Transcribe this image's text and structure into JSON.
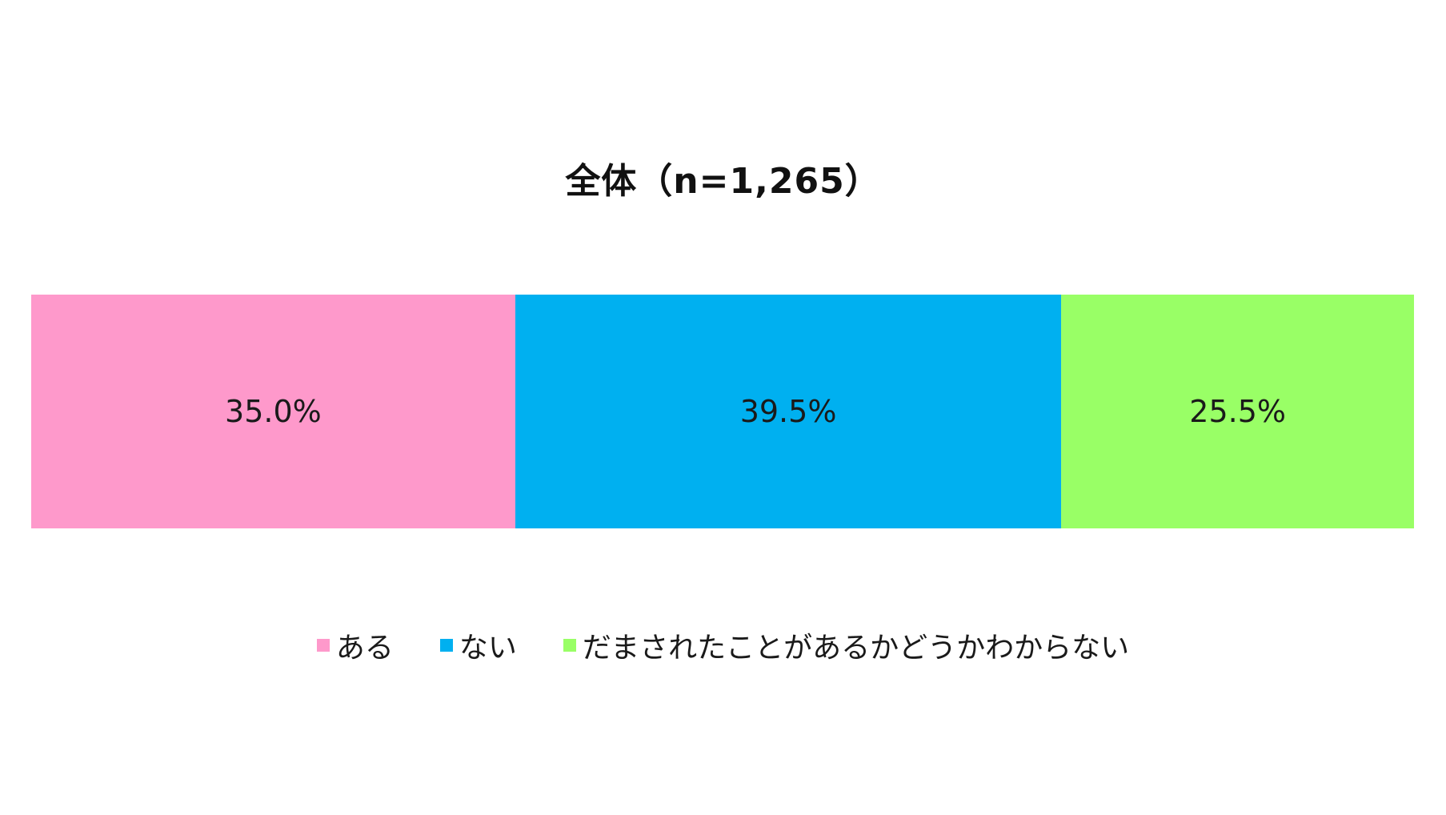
{
  "chart_data": {
    "type": "bar",
    "orientation": "horizontal",
    "stacked": true,
    "title": "全体（n=1,265）",
    "categories": [
      "全体"
    ],
    "series": [
      {
        "name": "ある",
        "values": [
          35.0
        ],
        "label": "35.0%",
        "color": "#fe99cb"
      },
      {
        "name": "ない",
        "values": [
          39.5
        ],
        "label": "39.5%",
        "color": "#00b0f0"
      },
      {
        "name": "だまされたことがあるかどうかわからない",
        "values": [
          25.5
        ],
        "label": "25.5%",
        "color": "#99ff66"
      }
    ],
    "xlim": [
      0,
      100
    ],
    "grid": false,
    "legend_position": "bottom"
  }
}
